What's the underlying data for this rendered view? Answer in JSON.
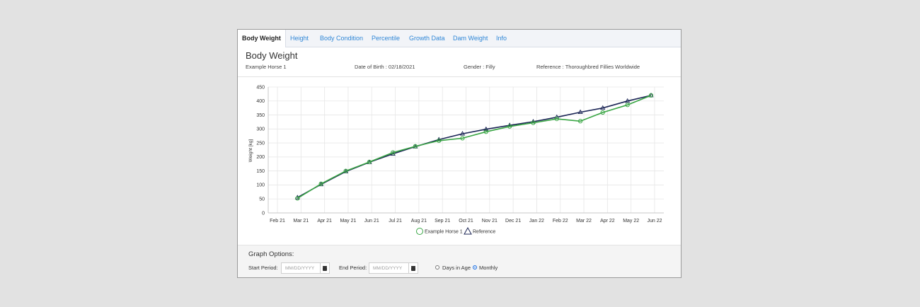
{
  "tabs": [
    {
      "label": "Body Weight",
      "active": true
    },
    {
      "label": "Height"
    },
    {
      "label": "Body Condition"
    },
    {
      "label": "Percentile"
    },
    {
      "label": "Growth Data"
    },
    {
      "label": "Dam Weight"
    },
    {
      "label": "Info"
    }
  ],
  "heading": "Body Weight",
  "horse": {
    "name": "Example Horse 1",
    "dob": "Date of Birth : 02/18/2021",
    "gender": "Gender : Filly",
    "reference": "Reference : Thoroughbred Fillies Worldwide"
  },
  "chart_data": {
    "type": "line",
    "x": [
      "Feb 21",
      "Mar 21",
      "Apr 21",
      "May 21",
      "Jun 21",
      "Jul 21",
      "Aug 21",
      "Sep 21",
      "Oct 21",
      "Nov 21",
      "Dec 21",
      "Jan 22",
      "Feb 22",
      "Mar 22",
      "Apr 22",
      "May 22",
      "Jun 22"
    ],
    "ylabel": "Weight [kg]",
    "ylim": [
      0,
      450
    ],
    "yticks": [
      0,
      50,
      100,
      150,
      200,
      250,
      300,
      350,
      400,
      450
    ],
    "grid": true,
    "legend_position": "bottom",
    "series": [
      {
        "name": "Example Horse 1",
        "marker": "circle",
        "color": "#3aa645",
        "points": [
          [
            0.85,
            52
          ],
          [
            1.85,
            104
          ],
          [
            2.9,
            150
          ],
          [
            3.9,
            182
          ],
          [
            4.9,
            216
          ],
          [
            5.85,
            238
          ],
          [
            6.85,
            258
          ],
          [
            7.85,
            267
          ],
          [
            8.85,
            290
          ],
          [
            9.85,
            309
          ],
          [
            10.85,
            322
          ],
          [
            11.85,
            336
          ],
          [
            12.85,
            328
          ],
          [
            13.8,
            359
          ],
          [
            14.85,
            386
          ],
          [
            15.85,
            420
          ]
        ]
      },
      {
        "name": "Reference",
        "marker": "triangle",
        "color": "#1b2555",
        "points": [
          [
            0.85,
            55
          ],
          [
            1.85,
            102
          ],
          [
            2.9,
            148
          ],
          [
            3.9,
            181
          ],
          [
            4.9,
            211
          ],
          [
            5.85,
            237
          ],
          [
            6.85,
            262
          ],
          [
            7.85,
            283
          ],
          [
            8.85,
            299
          ],
          [
            9.85,
            313
          ],
          [
            10.85,
            326
          ],
          [
            11.85,
            342
          ],
          [
            12.85,
            360
          ],
          [
            13.8,
            375
          ],
          [
            14.85,
            400
          ],
          [
            15.85,
            420
          ]
        ]
      }
    ]
  },
  "options": {
    "title": "Graph Options:",
    "start_label": "Start Period:",
    "end_label": "End Period:",
    "date_placeholder": "MM/DD/YYYY",
    "radio_days": "Days in Age",
    "radio_monthly": "Monthly",
    "selected": "monthly"
  }
}
